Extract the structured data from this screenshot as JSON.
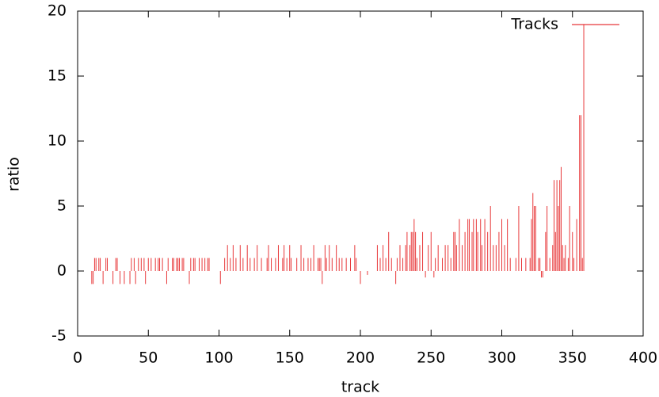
{
  "chart_data": {
    "type": "impulse",
    "x_label": "track",
    "y_label": "ratio",
    "series": [
      {
        "name": "Tracks",
        "color": "#e8383a",
        "x": [
          10,
          11,
          12,
          13,
          15,
          16,
          18,
          20,
          21,
          25,
          27,
          28,
          30,
          33,
          37,
          38,
          40,
          41,
          43,
          45,
          47,
          48,
          50,
          52,
          55,
          57,
          58,
          60,
          63,
          64,
          67,
          68,
          70,
          71,
          72,
          74,
          75,
          79,
          80,
          82,
          83,
          86,
          88,
          90,
          92,
          93,
          101,
          104,
          106,
          108,
          110,
          112,
          115,
          117,
          120,
          122,
          125,
          127,
          130,
          134,
          135,
          137,
          140,
          142,
          145,
          146,
          148,
          150,
          151,
          155,
          158,
          160,
          163,
          165,
          167,
          170,
          171,
          172,
          173,
          175,
          176,
          178,
          180,
          183,
          185,
          187,
          190,
          193,
          196,
          197,
          200,
          205,
          212,
          214,
          216,
          218,
          220,
          222,
          225,
          226,
          228,
          230,
          232,
          233,
          235,
          236,
          237,
          238,
          239,
          240,
          242,
          244,
          246,
          248,
          250,
          252,
          253,
          255,
          258,
          260,
          262,
          264,
          266,
          267,
          268,
          270,
          272,
          274,
          276,
          277,
          279,
          280,
          282,
          283,
          285,
          286,
          288,
          290,
          292,
          294,
          296,
          298,
          300,
          302,
          304,
          306,
          310,
          312,
          314,
          317,
          320,
          321,
          322,
          323,
          324,
          326,
          327,
          328,
          329,
          331,
          332,
          334,
          336,
          337,
          338,
          339,
          340,
          341,
          342,
          343,
          344,
          345,
          347,
          348,
          350,
          351,
          353,
          355,
          356,
          357,
          358
        ],
        "values": [
          -1,
          -1,
          1,
          1,
          1,
          1,
          -1,
          1,
          1,
          -1,
          1,
          1,
          -1,
          -1,
          -1,
          1,
          1,
          -1,
          1,
          1,
          1,
          -1,
          1,
          1,
          1,
          1,
          1,
          1,
          -1,
          1,
          1,
          1,
          1,
          1,
          1,
          1,
          1,
          -1,
          1,
          1,
          1,
          1,
          1,
          1,
          1,
          1,
          -1,
          1,
          2,
          1,
          2,
          1,
          2,
          1,
          2,
          1,
          1,
          2,
          1,
          1,
          2,
          1,
          1,
          2,
          1,
          2,
          1,
          2,
          1,
          1,
          2,
          1,
          1,
          1,
          2,
          1,
          1,
          1,
          -1,
          2,
          1,
          2,
          1,
          2,
          1,
          1,
          1,
          1,
          2,
          1,
          -1,
          -0.3,
          2,
          1,
          2,
          1,
          3,
          1,
          -1,
          1,
          2,
          1,
          2,
          3,
          2,
          3,
          3,
          4,
          3,
          1,
          2,
          3,
          -0.5,
          2,
          3,
          -0.5,
          1,
          2,
          1,
          2,
          2,
          1,
          3,
          3,
          2,
          4,
          2,
          3,
          4,
          4,
          3,
          4,
          4,
          3,
          4,
          2,
          4,
          3,
          5,
          2,
          2,
          3,
          4,
          2,
          4,
          1,
          1,
          5,
          1,
          1,
          1,
          4,
          6,
          5,
          5,
          1,
          1,
          -0.5,
          -0.5,
          3,
          5,
          1,
          2,
          7,
          3,
          7,
          5,
          7,
          8,
          2,
          1,
          2,
          1,
          5,
          3,
          1,
          4,
          12,
          12,
          1,
          19
        ]
      }
    ],
    "xlim": [
      0,
      400
    ],
    "xticks": [
      0,
      50,
      100,
      150,
      200,
      250,
      300,
      350,
      400
    ],
    "ylim": [
      -5,
      20
    ],
    "yticks": [
      -5,
      0,
      5,
      10,
      15,
      20
    ],
    "legend": "top-right"
  }
}
